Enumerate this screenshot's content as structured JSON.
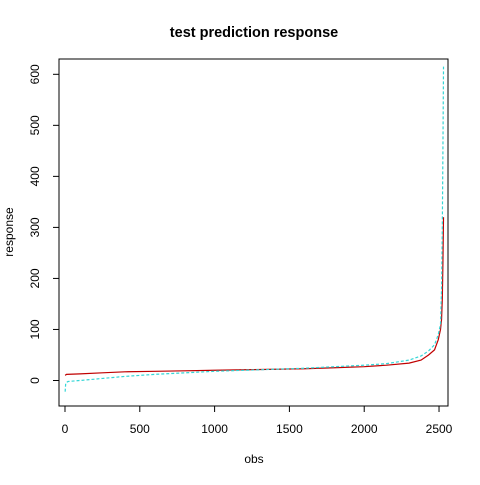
{
  "chart_data": {
    "type": "line",
    "title": "test prediction response",
    "xlabel": "obs",
    "ylabel": "response",
    "xlim": [
      -40,
      2560
    ],
    "ylim": [
      -50,
      630
    ],
    "x_ticks": [
      0,
      500,
      1000,
      1500,
      2000,
      2500
    ],
    "y_ticks": [
      0,
      100,
      200,
      300,
      400,
      500,
      600
    ],
    "grid": false,
    "legend": "none",
    "series": [
      {
        "style": "solid",
        "color": "#c00000",
        "points": [
          [
            1,
            10
          ],
          [
            10,
            12
          ],
          [
            100,
            13
          ],
          [
            250,
            15
          ],
          [
            400,
            17
          ],
          [
            600,
            18
          ],
          [
            800,
            19
          ],
          [
            1000,
            20
          ],
          [
            1200,
            21
          ],
          [
            1400,
            22
          ],
          [
            1600,
            23
          ],
          [
            1800,
            25
          ],
          [
            2000,
            27
          ],
          [
            2150,
            30
          ],
          [
            2300,
            34
          ],
          [
            2380,
            40
          ],
          [
            2430,
            50
          ],
          [
            2470,
            60
          ],
          [
            2495,
            80
          ],
          [
            2510,
            100
          ],
          [
            2517,
            120
          ],
          [
            2522,
            160
          ],
          [
            2526,
            230
          ],
          [
            2530,
            320
          ]
        ]
      },
      {
        "style": "dashed",
        "color": "#34d6d6",
        "points": [
          [
            1,
            -22
          ],
          [
            5,
            -5
          ],
          [
            20,
            -2
          ],
          [
            100,
            0
          ],
          [
            250,
            4
          ],
          [
            400,
            8
          ],
          [
            600,
            12
          ],
          [
            800,
            15
          ],
          [
            1000,
            18
          ],
          [
            1200,
            20
          ],
          [
            1400,
            22
          ],
          [
            1600,
            24
          ],
          [
            1800,
            27
          ],
          [
            2000,
            30
          ],
          [
            2150,
            33
          ],
          [
            2300,
            40
          ],
          [
            2380,
            48
          ],
          [
            2430,
            58
          ],
          [
            2470,
            70
          ],
          [
            2495,
            90
          ],
          [
            2510,
            110
          ],
          [
            2517,
            180
          ],
          [
            2522,
            300
          ],
          [
            2526,
            450
          ],
          [
            2530,
            615
          ]
        ]
      }
    ]
  }
}
